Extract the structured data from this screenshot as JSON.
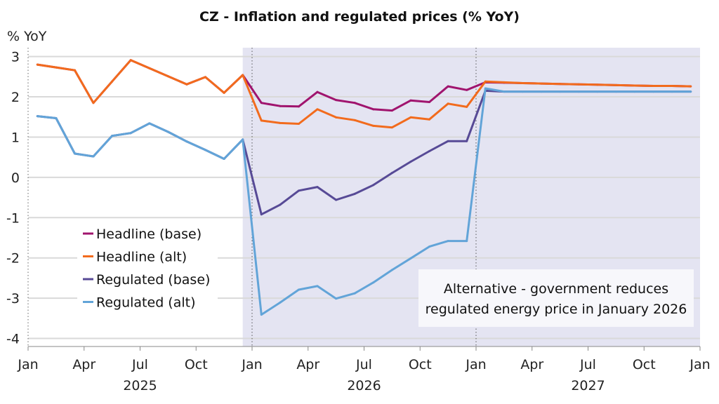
{
  "chart_data": {
    "type": "line",
    "title": "CZ - Inflation and regulated prices (% YoY)",
    "ylabel": "% YoY",
    "ylim": [
      -4.2,
      3.22
    ],
    "yticks": [
      3,
      2,
      1,
      0,
      -1,
      -2,
      -3,
      -4
    ],
    "ytick_labels": [
      "3",
      "2",
      "1",
      "0",
      "-1",
      "-2",
      "-3",
      "-4"
    ],
    "x_start": "Jan 2025",
    "x_months_total": 36,
    "xtick_labels": [
      "Jan",
      "Apr",
      "Jul",
      "Oct",
      "Jan",
      "Apr",
      "Jul",
      "Oct",
      "Jan",
      "Apr",
      "Jul",
      "Oct",
      "Jan"
    ],
    "year_labels": [
      "2025",
      "2026",
      "2027"
    ],
    "grid": true,
    "legend_position": "lower-left",
    "shaded_from_month": 11.5,
    "shade_color": "#e4e4f2",
    "annotation": [
      "Alternative - government reduces",
      "regulated energy price in January 2026"
    ],
    "series": [
      {
        "name": "Headline (base)",
        "color": "#a0146e",
        "values": [
          2.8,
          2.73,
          2.66,
          1.85,
          2.38,
          2.91,
          2.71,
          2.51,
          2.31,
          2.49,
          2.1,
          2.54,
          1.85,
          1.77,
          1.76,
          2.12,
          1.92,
          1.85,
          1.69,
          1.66,
          1.91,
          1.87,
          2.26,
          2.17,
          2.36,
          2.35,
          2.34,
          2.33,
          2.32,
          2.31,
          2.3,
          2.29,
          2.28,
          2.27,
          2.27,
          2.26
        ]
      },
      {
        "name": "Headline (alt)",
        "color": "#f26b1d",
        "values": [
          2.8,
          2.73,
          2.66,
          1.85,
          2.38,
          2.91,
          2.71,
          2.51,
          2.31,
          2.49,
          2.1,
          2.54,
          1.41,
          1.35,
          1.33,
          1.69,
          1.49,
          1.42,
          1.28,
          1.24,
          1.49,
          1.44,
          1.83,
          1.75,
          2.38,
          2.36,
          2.34,
          2.33,
          2.32,
          2.31,
          2.3,
          2.29,
          2.28,
          2.27,
          2.27,
          2.26
        ]
      },
      {
        "name": "Regulated (base)",
        "color": "#574a96",
        "values": [
          1.52,
          1.47,
          0.59,
          0.52,
          1.03,
          1.1,
          1.34,
          1.13,
          0.89,
          0.68,
          0.46,
          0.94,
          -0.92,
          -0.68,
          -0.33,
          -0.24,
          -0.56,
          -0.41,
          -0.19,
          0.11,
          0.39,
          0.65,
          0.9,
          0.9,
          2.15,
          2.13,
          2.13,
          2.13,
          2.13,
          2.13,
          2.13,
          2.13,
          2.13,
          2.13,
          2.13,
          2.13
        ]
      },
      {
        "name": "Regulated (alt)",
        "color": "#62a4d8",
        "values": [
          1.52,
          1.47,
          0.59,
          0.52,
          1.03,
          1.1,
          1.34,
          1.13,
          0.89,
          0.68,
          0.46,
          0.94,
          -3.41,
          -3.11,
          -2.79,
          -2.7,
          -3.01,
          -2.88,
          -2.61,
          -2.3,
          -2.01,
          -1.72,
          -1.58,
          -1.58,
          2.21,
          2.13,
          2.13,
          2.13,
          2.13,
          2.13,
          2.13,
          2.13,
          2.13,
          2.13,
          2.13,
          2.13
        ]
      }
    ]
  }
}
